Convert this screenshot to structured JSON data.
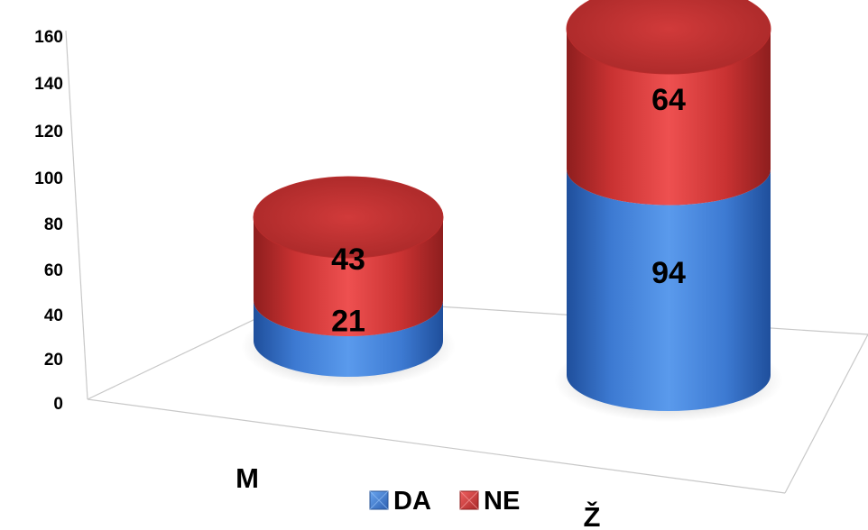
{
  "chart_data": {
    "type": "bar",
    "style": "stacked 3d cylinder",
    "categories": [
      "M",
      "Ž"
    ],
    "series": [
      {
        "name": "DA",
        "values": [
          21,
          94
        ],
        "color": "#3f7fd6"
      },
      {
        "name": "NE",
        "values": [
          43,
          64
        ],
        "color": "#d63a3a"
      }
    ],
    "ylim": [
      0,
      160
    ],
    "yticks": [
      "0",
      "20",
      "40",
      "60",
      "80",
      "100",
      "120",
      "140",
      "160"
    ],
    "data_labels": true,
    "legend_position": "bottom",
    "grid": false
  }
}
